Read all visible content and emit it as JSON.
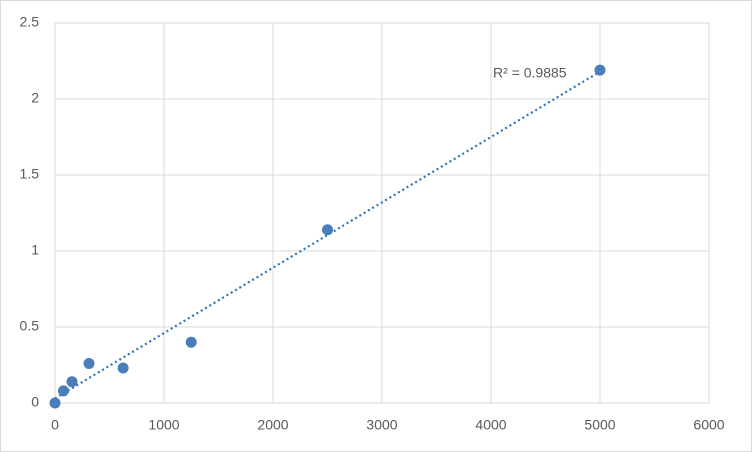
{
  "chart_data": {
    "type": "scatter",
    "x": [
      0,
      78,
      156,
      312,
      625,
      1250,
      2500,
      5000
    ],
    "series": [
      {
        "color": "#4a7ebb",
        "values": [
          0,
          0.08,
          0.14,
          0.26,
          0.23,
          0.4,
          1.14,
          2.19
        ]
      }
    ],
    "trendline": {
      "x": [
        0,
        5000
      ],
      "values": [
        0.03,
        2.18
      ],
      "color": "#2e75b6",
      "label": "R² = 0.9885"
    },
    "xlim": [
      0,
      6000
    ],
    "xticks": [
      0,
      1000,
      2000,
      3000,
      4000,
      5000,
      6000
    ],
    "ylim": [
      0,
      2.5
    ],
    "yticks": [
      0,
      0.5,
      1,
      1.5,
      2,
      2.5
    ],
    "grid": true
  }
}
